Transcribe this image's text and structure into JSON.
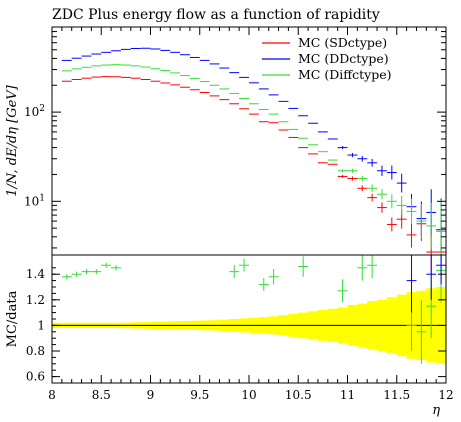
{
  "colors": {
    "sd": "#ff0000",
    "dd": "#0000ff",
    "diff": "#33dd33",
    "band": "#ffff00",
    "frame": "#000000"
  },
  "chart_data": [
    {
      "type": "scatter",
      "title": "ZDC Plus energy flow as a function of rapidity",
      "ylabel": "1/N dE/dη [GeV]",
      "ylabel_text": "1/N, dE/dη [GeV]",
      "xlim": [
        8,
        12
      ],
      "ylim": [
        2.5,
        900
      ],
      "log_y": true,
      "grid": false,
      "legend_position": "top-right",
      "y_ticks": [
        {
          "value": 100,
          "base": "10",
          "exp": "2"
        },
        {
          "value": 10,
          "base": "10",
          "exp": "1"
        }
      ],
      "series": [
        {
          "name": "MC (SDctype)",
          "color": "#ff0000",
          "points": [
            [
              8.15,
              222
            ],
            [
              8.25,
              232
            ],
            [
              8.35,
              240
            ],
            [
              8.45,
              247
            ],
            [
              8.55,
              250
            ],
            [
              8.65,
              249
            ],
            [
              8.75,
              245
            ],
            [
              8.85,
              240
            ],
            [
              8.95,
              232
            ],
            [
              9.05,
              222
            ],
            [
              9.15,
              212
            ],
            [
              9.25,
              202
            ],
            [
              9.35,
              190
            ],
            [
              9.45,
              178
            ],
            [
              9.55,
              166
            ],
            [
              9.65,
              152
            ],
            [
              9.75,
              138
            ],
            [
              9.85,
              124
            ],
            [
              9.95,
              109
            ],
            [
              10.05,
              95
            ],
            [
              10.15,
              78
            ],
            [
              10.25,
              76
            ],
            [
              10.35,
              63
            ],
            [
              10.45,
              52
            ],
            [
              10.55,
              40
            ],
            [
              10.65,
              34
            ],
            [
              10.75,
              27
            ],
            [
              10.85,
              26
            ],
            [
              10.95,
              19
            ],
            [
              11.05,
              18
            ],
            [
              11.15,
              14
            ],
            [
              11.25,
              11
            ],
            [
              11.35,
              8.5
            ],
            [
              11.45,
              5.5
            ],
            [
              11.55,
              6.3
            ],
            [
              11.65,
              4.2
            ],
            [
              11.75,
              5.6
            ],
            [
              11.85,
              2.7
            ],
            [
              11.95,
              2.7
            ]
          ]
        },
        {
          "name": "MC (DDctype)",
          "color": "#0000ff",
          "points": [
            [
              8.15,
              380
            ],
            [
              8.25,
              402
            ],
            [
              8.35,
              425
            ],
            [
              8.45,
              448
            ],
            [
              8.55,
              468
            ],
            [
              8.65,
              487
            ],
            [
              8.75,
              505
            ],
            [
              8.85,
              517
            ],
            [
              8.95,
              520
            ],
            [
              9.05,
              510
            ],
            [
              9.15,
              492
            ],
            [
              9.25,
              468
            ],
            [
              9.35,
              440
            ],
            [
              9.45,
              410
            ],
            [
              9.55,
              380
            ],
            [
              9.65,
              347
            ],
            [
              9.75,
              312
            ],
            [
              9.85,
              277
            ],
            [
              9.95,
              245
            ],
            [
              10.05,
              213
            ],
            [
              10.15,
              182
            ],
            [
              10.25,
              156
            ],
            [
              10.35,
              132
            ],
            [
              10.45,
              110
            ],
            [
              10.55,
              91
            ],
            [
              10.65,
              75
            ],
            [
              10.75,
              60
            ],
            [
              10.85,
              50
            ],
            [
              10.95,
              40
            ],
            [
              11.05,
              33
            ],
            [
              11.15,
              30
            ],
            [
              11.25,
              27
            ],
            [
              11.35,
              22
            ],
            [
              11.45,
              21
            ],
            [
              11.55,
              16
            ],
            [
              11.65,
              8.7
            ],
            [
              11.75,
              6.4
            ],
            [
              11.85,
              7.5
            ],
            [
              11.95,
              4.8
            ]
          ]
        },
        {
          "name": "MC (Diffctype)",
          "color": "#33dd33",
          "points": [
            [
              8.15,
              290
            ],
            [
              8.25,
              305
            ],
            [
              8.35,
              318
            ],
            [
              8.45,
              330
            ],
            [
              8.55,
              337
            ],
            [
              8.65,
              340
            ],
            [
              8.75,
              337
            ],
            [
              8.85,
              330
            ],
            [
              8.95,
              320
            ],
            [
              9.05,
              306
            ],
            [
              9.15,
              292
            ],
            [
              9.25,
              275
            ],
            [
              9.35,
              257
            ],
            [
              9.45,
              239
            ],
            [
              9.55,
              220
            ],
            [
              9.65,
              200
            ],
            [
              9.75,
              182
            ],
            [
              9.85,
              162
            ],
            [
              9.95,
              142
            ],
            [
              10.05,
              124
            ],
            [
              10.15,
              107
            ],
            [
              10.25,
              95
            ],
            [
              10.35,
              78
            ],
            [
              10.45,
              64
            ],
            [
              10.55,
              51
            ],
            [
              10.65,
              43
            ],
            [
              10.75,
              36
            ],
            [
              10.85,
              29
            ],
            [
              10.95,
              22
            ],
            [
              11.05,
              22
            ],
            [
              11.15,
              18
            ],
            [
              11.25,
              14
            ],
            [
              11.35,
              12
            ],
            [
              11.45,
              10
            ],
            [
              11.55,
              9
            ],
            [
              11.65,
              7.7
            ],
            [
              11.75,
              6
            ],
            [
              11.85,
              5.3
            ],
            [
              11.95,
              4.6
            ]
          ]
        }
      ]
    },
    {
      "type": "scatter",
      "ylabel": "MC/data",
      "xlabel": "η",
      "xlim": [
        8,
        12
      ],
      "ylim": [
        0.55,
        1.55
      ],
      "grid": false,
      "reference_line": 1,
      "x_ticks": [
        "8",
        "8.5",
        "9",
        "9.5",
        "10",
        "10.5",
        "11",
        "11.5",
        "12"
      ],
      "y_ticks": [
        "0.6",
        "0.8",
        "1",
        "1.2",
        "1.4"
      ],
      "data_band": {
        "x": [
          8.1,
          8.2,
          8.3,
          8.4,
          8.5,
          8.6,
          8.7,
          8.8,
          8.9,
          9.0,
          9.1,
          9.2,
          9.3,
          9.4,
          9.5,
          9.6,
          9.7,
          9.8,
          9.9,
          10.0,
          10.1,
          10.2,
          10.3,
          10.4,
          10.5,
          10.6,
          10.7,
          10.8,
          10.9,
          11.0,
          11.1,
          11.2,
          11.3,
          11.4,
          11.5,
          11.6,
          11.7,
          11.8,
          11.9,
          12.0
        ],
        "half_width": [
          0.02,
          0.02,
          0.02,
          0.02,
          0.02,
          0.02,
          0.02,
          0.022,
          0.024,
          0.026,
          0.028,
          0.03,
          0.032,
          0.034,
          0.036,
          0.038,
          0.04,
          0.045,
          0.05,
          0.055,
          0.06,
          0.065,
          0.07,
          0.08,
          0.09,
          0.1,
          0.11,
          0.12,
          0.13,
          0.14,
          0.16,
          0.17,
          0.19,
          0.2,
          0.22,
          0.24,
          0.26,
          0.27,
          0.29,
          0.3
        ]
      },
      "series": [
        {
          "name": "MC (Diffctype)",
          "color": "#33dd33",
          "points": [
            [
              8.15,
              1.38,
              0.02
            ],
            [
              8.25,
              1.4,
              0.02
            ],
            [
              8.35,
              1.42,
              0.02
            ],
            [
              8.45,
              1.42,
              0.02
            ],
            [
              8.55,
              1.47,
              0.02
            ],
            [
              8.65,
              1.45,
              0.02
            ],
            [
              9.85,
              1.42,
              0.05
            ],
            [
              9.95,
              1.47,
              0.05
            ],
            [
              10.15,
              1.32,
              0.05
            ],
            [
              10.25,
              1.38,
              0.06
            ],
            [
              10.55,
              1.46,
              0.08
            ],
            [
              10.95,
              1.27,
              0.09
            ],
            [
              11.15,
              1.45,
              0.1
            ],
            [
              11.25,
              1.47,
              0.1
            ],
            [
              11.65,
              1.0,
              0.2
            ],
            [
              11.75,
              0.95,
              0.25
            ],
            [
              11.85,
              1.15,
              0.25
            ],
            [
              11.95,
              1.43,
              0.25
            ]
          ]
        },
        {
          "name": "MC (DDctype)",
          "color": "#0000ff",
          "points": [
            [
              11.65,
              1.35,
              0.25
            ],
            [
              11.85,
              1.4,
              0.2
            ],
            [
              11.95,
              1.47,
              0.15
            ]
          ]
        }
      ]
    }
  ]
}
